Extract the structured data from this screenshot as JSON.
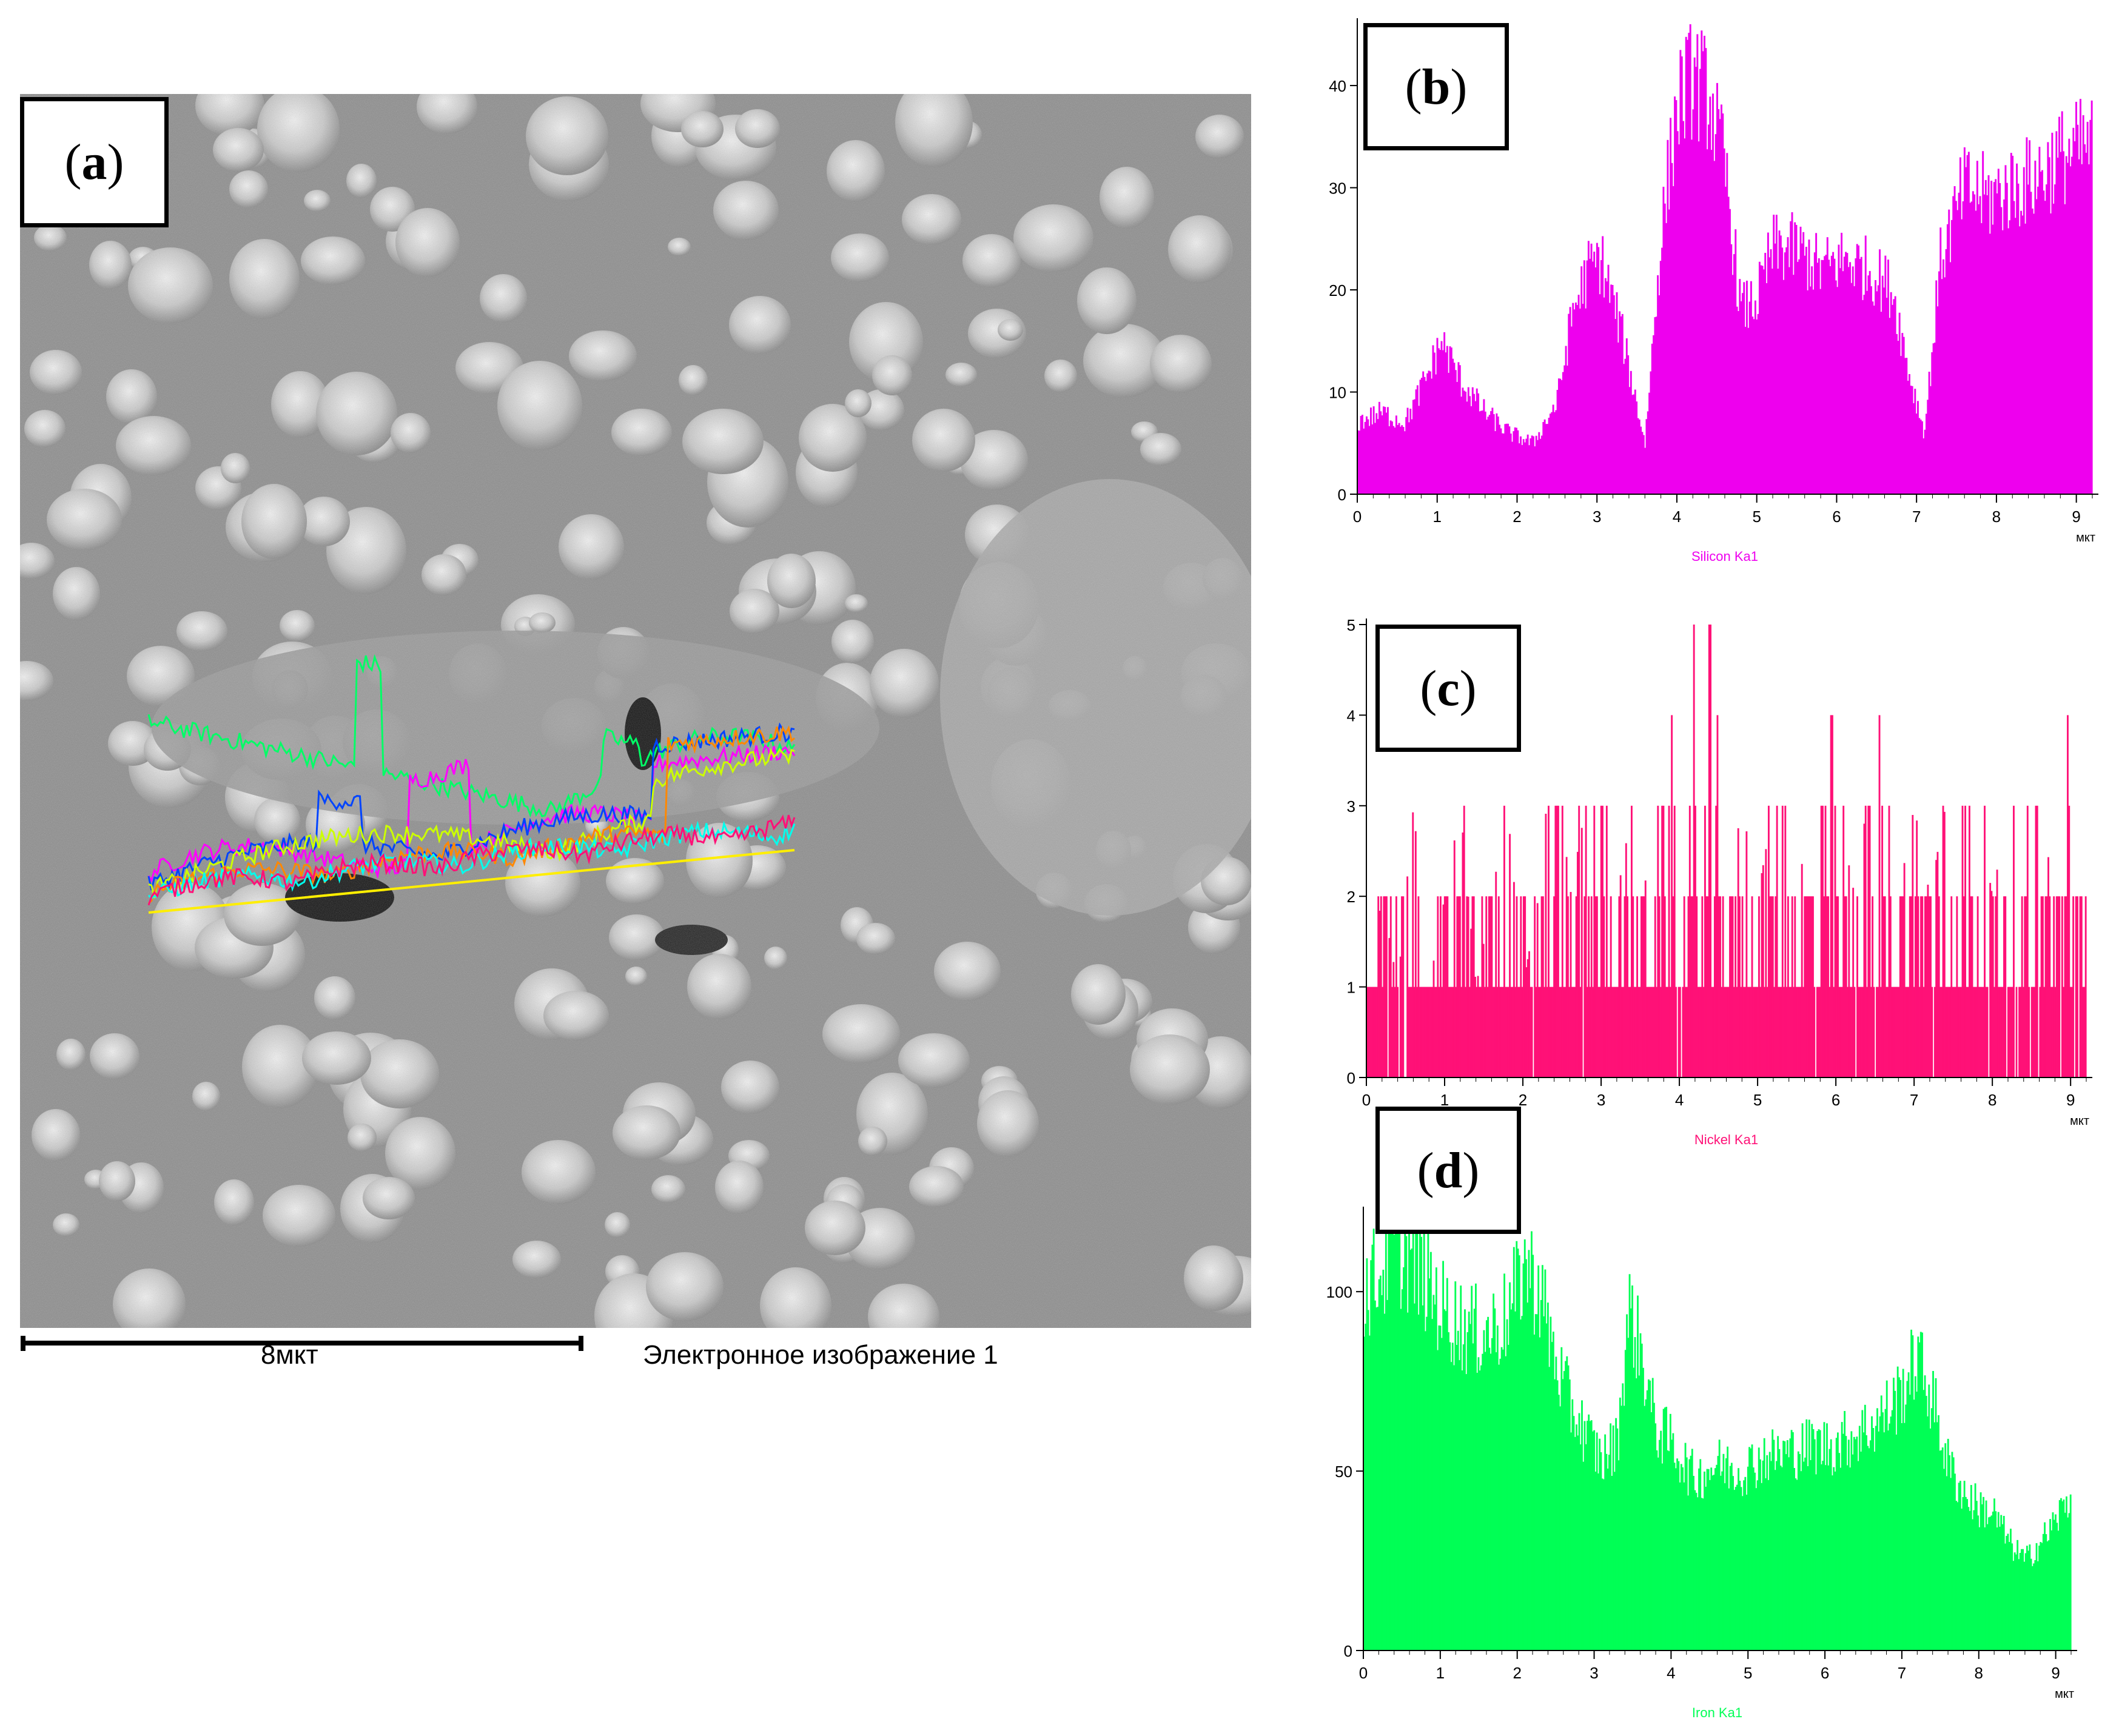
{
  "panel_labels": {
    "a": "a",
    "b": "b",
    "c": "c",
    "d": "d"
  },
  "sem_image": {
    "scale_bar_label": "8мкт",
    "caption": "Электронное изображение 1",
    "line_scan_colors": [
      "#00ff66",
      "#ff00ff",
      "#0044ff",
      "#ccff00",
      "#ff8800",
      "#00ffee",
      "#ff1177"
    ]
  },
  "colors": {
    "silicon": "#ee00ee",
    "nickel": "#ff1177",
    "iron": "#00ff55"
  },
  "chart_data": [
    {
      "panel": "b",
      "type": "area",
      "series": [
        {
          "name": "Silicon Ka1",
          "color": "#ee00ee"
        }
      ],
      "xlabel": "мкт",
      "xlim": [
        0,
        9.2
      ],
      "ylim": [
        0,
        46
      ],
      "xticks": [
        0,
        1,
        2,
        3,
        4,
        5,
        6,
        7,
        8,
        9
      ],
      "yticks": [
        0,
        10,
        20,
        30,
        40
      ],
      "x": [
        0,
        0.3,
        0.6,
        0.9,
        1.05,
        1.3,
        1.6,
        1.9,
        2.2,
        2.5,
        2.7,
        2.9,
        3.05,
        3.3,
        3.6,
        3.8,
        4.0,
        4.2,
        4.4,
        4.6,
        4.8,
        5.0,
        5.2,
        5.5,
        5.8,
        6.1,
        6.4,
        6.7,
        6.9,
        7.1,
        7.3,
        7.6,
        7.9,
        8.2,
        8.5,
        8.8,
        9.1
      ],
      "values": [
        7,
        8,
        7,
        12,
        15,
        11,
        8,
        6,
        5,
        9,
        18,
        22,
        23,
        16,
        5,
        25,
        38,
        41,
        39,
        32,
        18,
        19,
        24,
        24,
        22,
        23,
        22,
        20,
        12,
        6,
        23,
        30,
        29,
        30,
        31,
        33,
        34
      ]
    },
    {
      "panel": "c",
      "type": "bar",
      "series": [
        {
          "name": "Nickel Ka1",
          "color": "#ff1177"
        }
      ],
      "xlabel": "мкт",
      "xlim": [
        0,
        9.2
      ],
      "ylim": [
        0,
        5
      ],
      "xticks": [
        0,
        1,
        2,
        3,
        4,
        5,
        6,
        7,
        8,
        9
      ],
      "yticks": [
        0,
        1,
        2,
        3,
        4,
        5
      ],
      "x": [
        0,
        0.2,
        0.4,
        0.6,
        0.8,
        1.0,
        1.2,
        1.4,
        1.6,
        1.8,
        2.0,
        2.2,
        2.4,
        2.6,
        2.8,
        3.0,
        3.2,
        3.4,
        3.6,
        3.8,
        4.0,
        4.1,
        4.2,
        4.3,
        4.4,
        4.5,
        4.6,
        4.8,
        5.0,
        5.2,
        5.4,
        5.6,
        5.8,
        6.0,
        6.2,
        6.4,
        6.6,
        6.8,
        7.0,
        7.2,
        7.4,
        7.6,
        7.8,
        8.0,
        8.2,
        8.4,
        8.6,
        8.8,
        9.0,
        9.1
      ],
      "values": [
        1,
        2,
        1,
        3,
        1,
        2,
        3,
        1,
        2,
        3,
        1,
        2,
        4,
        2,
        3,
        4,
        2,
        3,
        2,
        3,
        5,
        4,
        5,
        3,
        5,
        4,
        2,
        3,
        2,
        3,
        4,
        2,
        3,
        4,
        2,
        3,
        4,
        2,
        3,
        2,
        3,
        4,
        3,
        2,
        3,
        4,
        3,
        2,
        4,
        2
      ]
    },
    {
      "panel": "d",
      "type": "area",
      "series": [
        {
          "name": "Iron Ka1",
          "color": "#00ff55"
        }
      ],
      "xlabel": "мкт",
      "xlim": [
        0,
        9.2
      ],
      "ylim": [
        0,
        122
      ],
      "xticks": [
        0,
        1,
        2,
        3,
        4,
        5,
        6,
        7,
        8,
        9
      ],
      "yticks": [
        0,
        50,
        100
      ],
      "x": [
        0,
        0.2,
        0.4,
        0.6,
        0.8,
        1.0,
        1.3,
        1.6,
        1.9,
        2.1,
        2.3,
        2.5,
        2.7,
        2.9,
        3.1,
        3.3,
        3.45,
        3.6,
        3.8,
        4.0,
        4.3,
        4.6,
        4.9,
        5.2,
        5.5,
        5.8,
        6.1,
        6.4,
        6.7,
        7.0,
        7.2,
        7.4,
        7.6,
        7.8,
        8.0,
        8.2,
        8.4,
        8.6,
        8.8,
        9.0,
        9.15
      ],
      "values": [
        100,
        105,
        112,
        110,
        104,
        96,
        90,
        88,
        94,
        108,
        100,
        80,
        68,
        60,
        53,
        58,
        95,
        84,
        62,
        58,
        48,
        52,
        50,
        54,
        55,
        57,
        57,
        60,
        64,
        72,
        82,
        70,
        52,
        44,
        40,
        38,
        30,
        25,
        30,
        36,
        42
      ]
    }
  ]
}
